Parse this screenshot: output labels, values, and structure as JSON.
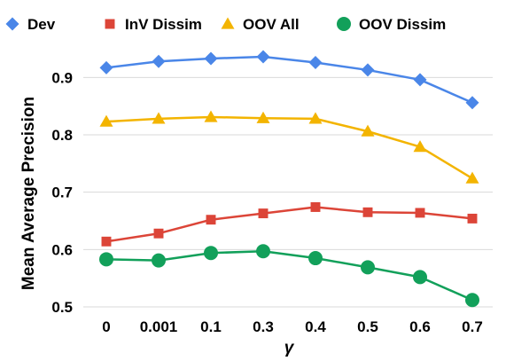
{
  "chart_data": {
    "type": "line",
    "title": "",
    "xlabel": "γ",
    "ylabel": "Mean Average Precision",
    "categories": [
      "0",
      "0.001",
      "0.1",
      "0.3",
      "0.4",
      "0.5",
      "0.6",
      "0.7"
    ],
    "ylim": [
      0.5,
      0.95
    ],
    "yticks": [
      "0.5",
      "0.6",
      "0.7",
      "0.8",
      "0.9"
    ],
    "grid": "horizontal",
    "legend_position": "top",
    "series": [
      {
        "name": "Dev",
        "marker": "diamond",
        "color": "#4a86e8",
        "values": [
          0.917,
          0.928,
          0.933,
          0.936,
          0.926,
          0.913,
          0.896,
          0.856
        ]
      },
      {
        "name": "InV Dissim",
        "marker": "square",
        "color": "#dc4538",
        "values": [
          0.614,
          0.628,
          0.652,
          0.663,
          0.674,
          0.665,
          0.664,
          0.654
        ]
      },
      {
        "name": "OOV All",
        "marker": "triangle",
        "color": "#f3b400",
        "values": [
          0.823,
          0.828,
          0.831,
          0.829,
          0.828,
          0.806,
          0.779,
          0.724
        ]
      },
      {
        "name": "OOV Dissim",
        "marker": "circle",
        "color": "#12a05a",
        "values": [
          0.583,
          0.581,
          0.594,
          0.597,
          0.585,
          0.569,
          0.552,
          0.512
        ]
      }
    ]
  }
}
